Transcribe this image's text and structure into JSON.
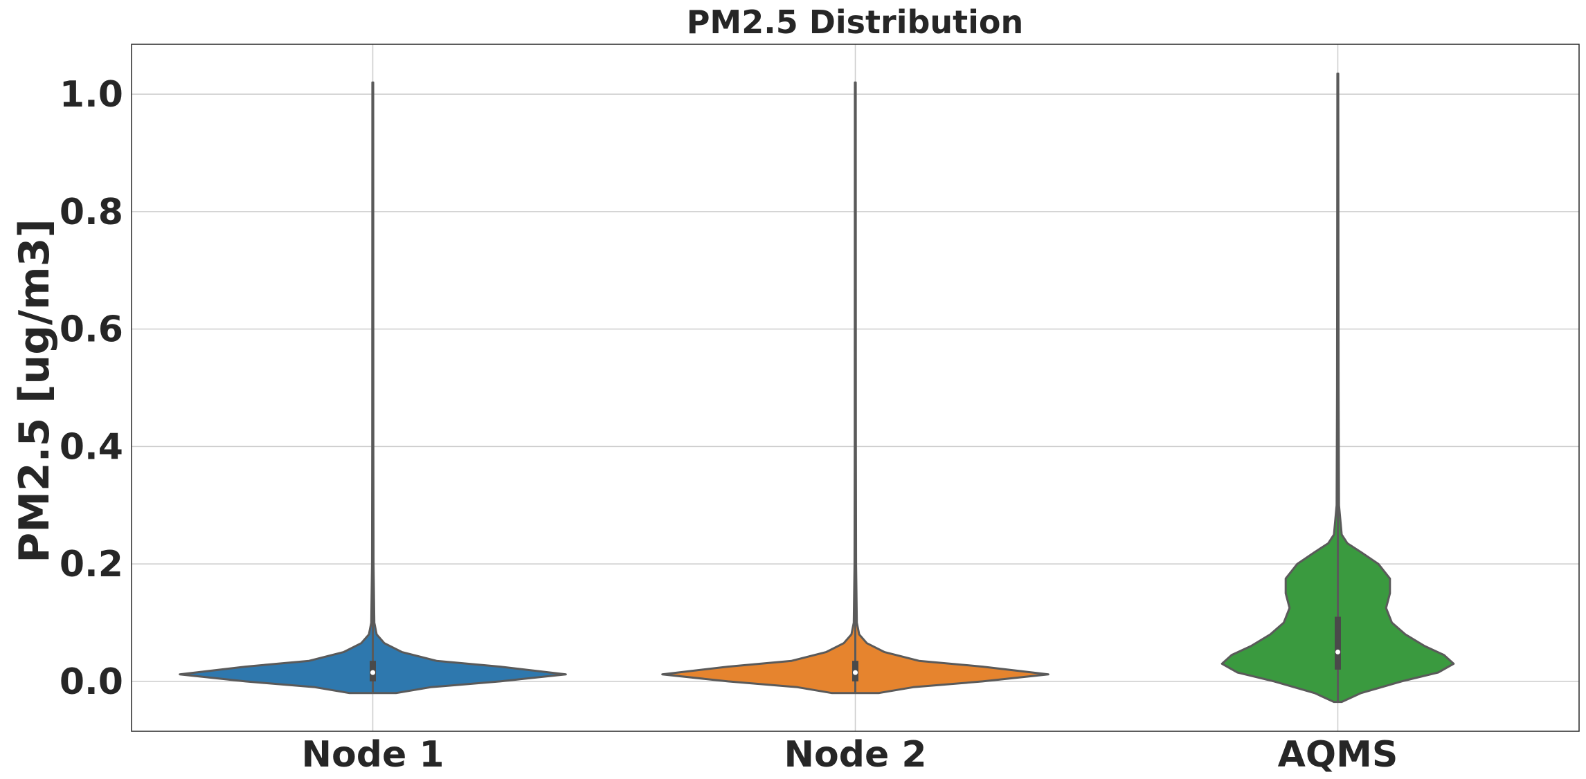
{
  "chart_data": {
    "type": "violin",
    "title": "PM2.5 Distribution",
    "xlabel": "",
    "ylabel": "PM2.5 [ug/m3]",
    "categories": [
      "Node 1",
      "Node 2",
      "AQMS"
    ],
    "ylim": [
      -0.085,
      1.085
    ],
    "yticks": [
      0.0,
      0.2,
      0.4,
      0.6,
      0.8,
      1.0
    ],
    "ytick_labels": [
      "0.0",
      "0.2",
      "0.4",
      "0.6",
      "0.8",
      "1.0"
    ],
    "grid": true,
    "series": [
      {
        "category": "Node 1",
        "color": "#2e78ae",
        "min": -0.02,
        "max": 1.02,
        "q1": 0.0,
        "median": 0.015,
        "q3": 0.035,
        "profile": [
          [
            -0.02,
            0.12
          ],
          [
            -0.01,
            0.3
          ],
          [
            0.0,
            0.66
          ],
          [
            0.012,
            1.0
          ],
          [
            0.025,
            0.66
          ],
          [
            0.035,
            0.33
          ],
          [
            0.05,
            0.15
          ],
          [
            0.065,
            0.06
          ],
          [
            0.08,
            0.02
          ],
          [
            0.1,
            0.008
          ],
          [
            0.2,
            0.004
          ],
          [
            0.4,
            0.003
          ],
          [
            1.02,
            0.002
          ]
        ]
      },
      {
        "category": "Node 2",
        "color": "#e6842e",
        "min": -0.02,
        "max": 1.02,
        "q1": 0.0,
        "median": 0.015,
        "q3": 0.035,
        "profile": [
          [
            -0.02,
            0.12
          ],
          [
            -0.01,
            0.3
          ],
          [
            0.0,
            0.66
          ],
          [
            0.012,
            1.0
          ],
          [
            0.025,
            0.66
          ],
          [
            0.035,
            0.33
          ],
          [
            0.05,
            0.15
          ],
          [
            0.065,
            0.06
          ],
          [
            0.08,
            0.02
          ],
          [
            0.1,
            0.008
          ],
          [
            0.2,
            0.004
          ],
          [
            0.4,
            0.003
          ],
          [
            1.02,
            0.002
          ]
        ]
      },
      {
        "category": "AQMS",
        "color": "#3a9a3f",
        "min": -0.035,
        "max": 1.035,
        "q1": 0.02,
        "median": 0.05,
        "q3": 0.11,
        "profile": [
          [
            -0.035,
            0.02
          ],
          [
            -0.02,
            0.12
          ],
          [
            0.0,
            0.33
          ],
          [
            0.015,
            0.52
          ],
          [
            0.03,
            0.6
          ],
          [
            0.045,
            0.55
          ],
          [
            0.06,
            0.45
          ],
          [
            0.08,
            0.35
          ],
          [
            0.1,
            0.28
          ],
          [
            0.125,
            0.25
          ],
          [
            0.15,
            0.27
          ],
          [
            0.175,
            0.27
          ],
          [
            0.2,
            0.21
          ],
          [
            0.22,
            0.12
          ],
          [
            0.235,
            0.05
          ],
          [
            0.25,
            0.02
          ],
          [
            0.3,
            0.006
          ],
          [
            0.5,
            0.004
          ],
          [
            1.035,
            0.002
          ]
        ]
      }
    ]
  }
}
